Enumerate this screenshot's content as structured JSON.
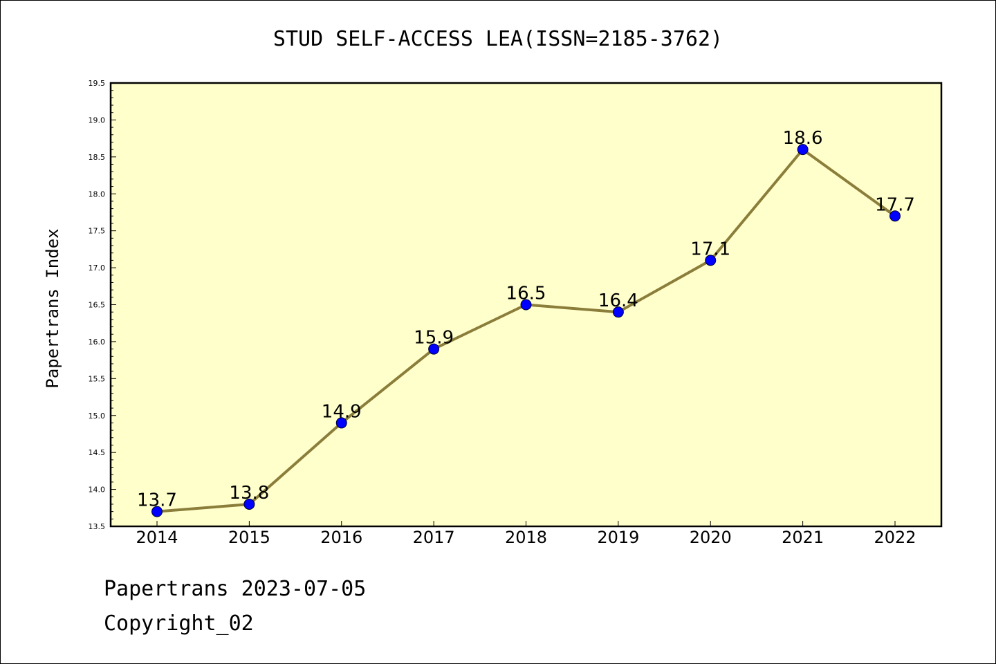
{
  "chart_data": {
    "type": "line",
    "title": "STUD SELF-ACCESS LEA(ISSN=2185-3762)",
    "xlabel": "",
    "ylabel": "Papertrans Index",
    "categories": [
      "2014",
      "2015",
      "2016",
      "2017",
      "2018",
      "2019",
      "2020",
      "2021",
      "2022"
    ],
    "series": [
      {
        "values": [
          13.7,
          13.8,
          14.9,
          15.9,
          16.5,
          16.4,
          17.1,
          18.6,
          17.7
        ],
        "labels": [
          "13.7",
          "13.8",
          "14.9",
          "15.9",
          "16.5",
          "16.4",
          "17.1",
          "18.6",
          "17.7"
        ]
      }
    ],
    "ylim": [
      13.5,
      19.5
    ],
    "yticks": [
      "13.5",
      "14.0",
      "14.5",
      "15.0",
      "15.5",
      "16.0",
      "16.5",
      "17.0",
      "17.5",
      "18.0",
      "18.5",
      "19.0",
      "19.5"
    ],
    "grid": false,
    "colors": {
      "plot_background": "#ffffcc",
      "line": "#8b7d3a",
      "marker": "#0000ff"
    }
  },
  "footer": {
    "line1": "Papertrans 2023-07-05",
    "line2": "Copyright_02"
  }
}
